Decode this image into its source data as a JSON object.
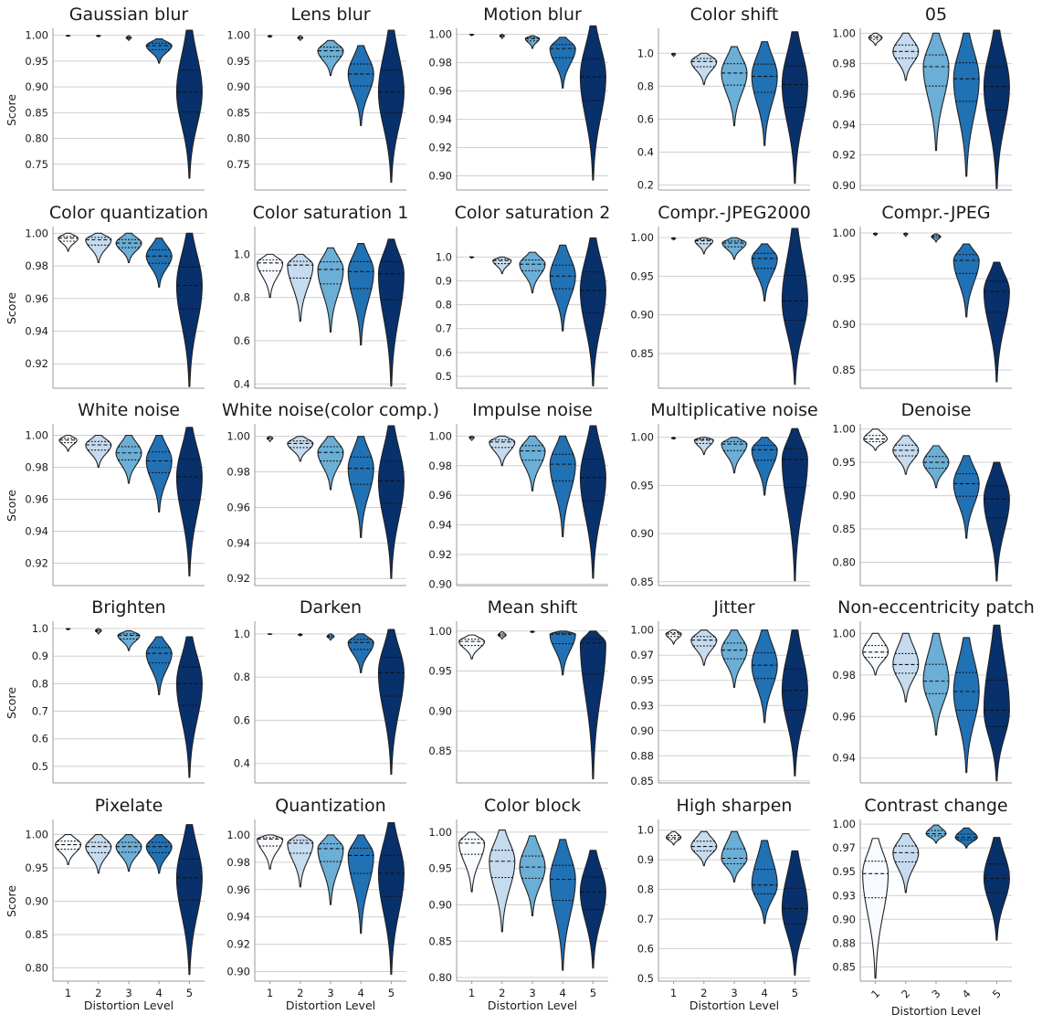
{
  "chart_data": {
    "type": "violin",
    "colors": [
      "#f7fbff",
      "#c6dbef",
      "#6baed6",
      "#2171b5",
      "#08306b"
    ],
    "xlabel": "Distortion Level",
    "ylabel": "Score",
    "categories": [
      "1",
      "2",
      "3",
      "4",
      "5"
    ],
    "panels": [
      {
        "title": "Gaussian blur",
        "ylim": [
          0.7,
          1.01
        ],
        "yticks": [
          0.75,
          0.8,
          0.85,
          0.9,
          0.95,
          1.0
        ],
        "medians": [
          0.999,
          0.999,
          0.995,
          0.98,
          0.89
        ],
        "mins": [
          0.998,
          0.997,
          0.99,
          0.946,
          0.723
        ],
        "maxs": [
          1.0,
          1.0,
          0.999,
          0.993,
          1.01
        ]
      },
      {
        "title": "Lens blur",
        "ylim": [
          0.7,
          1.01
        ],
        "yticks": [
          0.75,
          0.8,
          0.85,
          0.9,
          0.95,
          1.0
        ],
        "medians": [
          0.998,
          0.995,
          0.97,
          0.925,
          0.89
        ],
        "mins": [
          0.996,
          0.99,
          0.922,
          0.825,
          0.715
        ],
        "maxs": [
          1.0,
          0.999,
          0.99,
          0.98,
          1.01
        ]
      },
      {
        "title": "Motion blur",
        "ylim": [
          0.89,
          1.003
        ],
        "yticks": [
          0.9,
          0.92,
          0.94,
          0.96,
          0.98,
          1.0
        ],
        "medians": [
          1.0,
          0.999,
          0.997,
          0.99,
          0.97
        ],
        "mins": [
          0.999,
          0.997,
          0.99,
          0.962,
          0.897
        ],
        "maxs": [
          1.0,
          1.0,
          0.999,
          0.998,
          1.006
        ]
      },
      {
        "title": "Color shift",
        "ylim": [
          0.17,
          1.14
        ],
        "yticks": [
          0.2,
          0.4,
          0.6,
          0.8,
          1.0
        ],
        "medians": [
          0.995,
          0.95,
          0.88,
          0.86,
          0.81
        ],
        "mins": [
          0.98,
          0.81,
          0.56,
          0.44,
          0.21
        ],
        "maxs": [
          1.0,
          1.0,
          1.04,
          1.07,
          1.13
        ]
      },
      {
        "title": "05",
        "ylim": [
          0.897,
          1.002
        ],
        "yticks": [
          0.9,
          0.92,
          0.94,
          0.96,
          0.98,
          1.0
        ],
        "medians": [
          0.997,
          0.988,
          0.978,
          0.97,
          0.965
        ],
        "mins": [
          0.992,
          0.969,
          0.923,
          0.906,
          0.898
        ],
        "maxs": [
          1.0,
          1.0,
          1.0,
          1.0,
          1.002
        ]
      },
      {
        "title": "Color quantization",
        "ylim": [
          0.905,
          1.003
        ],
        "yticks": [
          0.92,
          0.94,
          0.96,
          0.98,
          1.0
        ],
        "medians": [
          0.997,
          0.996,
          0.994,
          0.986,
          0.968
        ],
        "mins": [
          0.989,
          0.982,
          0.982,
          0.967,
          0.906
        ],
        "maxs": [
          1.0,
          1.0,
          1.0,
          0.997,
          1.0
        ]
      },
      {
        "title": "Color saturation 1",
        "ylim": [
          0.38,
          1.12
        ],
        "yticks": [
          0.4,
          0.6,
          0.8,
          1.0
        ],
        "medians": [
          0.96,
          0.95,
          0.93,
          0.92,
          0.91
        ],
        "mins": [
          0.8,
          0.69,
          0.64,
          0.58,
          0.39
        ],
        "maxs": [
          1.0,
          1.0,
          1.03,
          1.05,
          1.07
        ]
      },
      {
        "title": "Color saturation 2",
        "ylim": [
          0.45,
          1.12
        ],
        "yticks": [
          0.5,
          0.6,
          0.7,
          0.8,
          0.9,
          1.0
        ],
        "medians": [
          1.0,
          0.985,
          0.97,
          0.92,
          0.86
        ],
        "mins": [
          0.995,
          0.93,
          0.85,
          0.69,
          0.46
        ],
        "maxs": [
          1.0,
          1.0,
          1.02,
          1.05,
          1.08
        ]
      },
      {
        "title": "Compr.-JPEG2000",
        "ylim": [
          0.805,
          1.012
        ],
        "yticks": [
          0.85,
          0.9,
          0.95,
          1.0
        ],
        "medians": [
          0.999,
          0.996,
          0.993,
          0.973,
          0.918
        ],
        "mins": [
          0.997,
          0.979,
          0.972,
          0.918,
          0.81
        ],
        "maxs": [
          1.0,
          1.0,
          1.0,
          0.992,
          1.012
        ]
      },
      {
        "title": "Compr.-JPEG",
        "ylim": [
          0.83,
          1.005
        ],
        "yticks": [
          0.85,
          0.9,
          0.95,
          1.0
        ],
        "medians": [
          0.999,
          0.999,
          0.996,
          0.97,
          0.936
        ],
        "mins": [
          0.997,
          0.996,
          0.99,
          0.908,
          0.837
        ],
        "maxs": [
          1.0,
          1.0,
          0.999,
          0.988,
          0.968
        ]
      },
      {
        "title": "White noise",
        "ylim": [
          0.906,
          1.006
        ],
        "yticks": [
          0.92,
          0.94,
          0.96,
          0.98,
          1.0
        ],
        "medians": [
          0.997,
          0.994,
          0.989,
          0.984,
          0.974
        ],
        "mins": [
          0.99,
          0.98,
          0.97,
          0.952,
          0.912
        ],
        "maxs": [
          1.0,
          1.0,
          1.0,
          1.0,
          1.005
        ]
      },
      {
        "title": "White noise(color comp.)",
        "ylim": [
          0.916,
          1.006
        ],
        "yticks": [
          0.92,
          0.94,
          0.96,
          0.98,
          1.0
        ],
        "medians": [
          0.999,
          0.996,
          0.991,
          0.982,
          0.975
        ],
        "mins": [
          0.997,
          0.986,
          0.97,
          0.943,
          0.92
        ],
        "maxs": [
          1.0,
          1.0,
          1.0,
          1.0,
          1.006
        ]
      },
      {
        "title": "Impulse noise",
        "ylim": [
          0.899,
          1.007
        ],
        "yticks": [
          0.9,
          0.92,
          0.94,
          0.96,
          0.98,
          1.0
        ],
        "medians": [
          0.999,
          0.996,
          0.99,
          0.981,
          0.972
        ],
        "mins": [
          0.997,
          0.98,
          0.963,
          0.932,
          0.904
        ],
        "maxs": [
          1.0,
          1.0,
          1.0,
          1.0,
          1.007
        ]
      },
      {
        "title": "Multiplicative noise",
        "ylim": [
          0.846,
          1.012
        ],
        "yticks": [
          0.85,
          0.9,
          0.95,
          1.0
        ],
        "medians": [
          0.999,
          0.997,
          0.993,
          0.987,
          0.977
        ],
        "mins": [
          0.998,
          0.982,
          0.963,
          0.94,
          0.851
        ],
        "maxs": [
          1.0,
          1.0,
          1.0,
          1.0,
          1.009
        ]
      },
      {
        "title": "Denoise",
        "ylim": [
          0.765,
          1.005
        ],
        "yticks": [
          0.8,
          0.85,
          0.9,
          0.95,
          1.0
        ],
        "medians": [
          0.985,
          0.968,
          0.95,
          0.918,
          0.895
        ],
        "mins": [
          0.968,
          0.932,
          0.912,
          0.836,
          0.772
        ],
        "maxs": [
          1.0,
          0.99,
          0.975,
          0.96,
          0.95
        ]
      },
      {
        "title": "Brighten",
        "ylim": [
          0.44,
          1.02
        ],
        "yticks": [
          0.5,
          0.6,
          0.7,
          0.8,
          0.9,
          1.0
        ],
        "medians": [
          0.999,
          0.992,
          0.975,
          0.91,
          0.8
        ],
        "mins": [
          0.995,
          0.98,
          0.92,
          0.76,
          0.46
        ],
        "maxs": [
          1.0,
          1.0,
          0.992,
          0.97,
          0.97
        ]
      },
      {
        "title": "Darken",
        "ylim": [
          0.31,
          1.05
        ],
        "yticks": [
          0.4,
          0.6,
          0.8,
          1.0
        ],
        "medians": [
          0.999,
          0.996,
          0.988,
          0.96,
          0.82
        ],
        "mins": [
          0.997,
          0.99,
          0.97,
          0.82,
          0.35
        ],
        "maxs": [
          1.0,
          1.0,
          1.0,
          1.0,
          1.02
        ]
      },
      {
        "title": "Mean shift",
        "ylim": [
          0.81,
          1.01
        ],
        "yticks": [
          0.85,
          0.9,
          0.95,
          1.0
        ],
        "medians": [
          0.987,
          0.995,
          0.999,
          0.996,
          0.985
        ],
        "mins": [
          0.965,
          0.99,
          0.998,
          0.945,
          0.815
        ],
        "maxs": [
          0.995,
          0.999,
          1.0,
          1.0,
          1.0
        ]
      },
      {
        "title": "Jitter",
        "ylim": [
          0.848,
          1.007
        ],
        "yticks": [
          0.85,
          0.875,
          0.9,
          0.925,
          0.95,
          0.975,
          1.0
        ],
        "medians": [
          0.996,
          0.99,
          0.98,
          0.965,
          0.94
        ],
        "mins": [
          0.986,
          0.965,
          0.943,
          0.908,
          0.855
        ],
        "maxs": [
          1.0,
          1.0,
          1.0,
          1.0,
          1.0
        ]
      },
      {
        "title": "Non-eccentricity patch",
        "ylim": [
          0.928,
          1.005
        ],
        "yticks": [
          0.94,
          0.96,
          0.98,
          1.0
        ],
        "medians": [
          0.991,
          0.985,
          0.977,
          0.972,
          0.963
        ],
        "mins": [
          0.98,
          0.967,
          0.951,
          0.933,
          0.929
        ],
        "maxs": [
          1.0,
          1.0,
          1.0,
          0.998,
          1.004
        ]
      },
      {
        "title": "Pixelate",
        "ylim": [
          0.78,
          1.02
        ],
        "yticks": [
          0.8,
          0.85,
          0.9,
          0.95,
          1.0
        ],
        "medians": [
          0.985,
          0.982,
          0.982,
          0.982,
          0.935
        ],
        "mins": [
          0.955,
          0.942,
          0.945,
          0.942,
          0.79
        ],
        "maxs": [
          1.0,
          1.0,
          1.0,
          1.0,
          1.015
        ]
      },
      {
        "title": "Quantization",
        "ylim": [
          0.893,
          1.01
        ],
        "yticks": [
          0.9,
          0.92,
          0.94,
          0.96,
          0.98,
          1.0
        ],
        "medians": [
          0.997,
          0.994,
          0.99,
          0.985,
          0.972
        ],
        "mins": [
          0.975,
          0.962,
          0.949,
          0.928,
          0.898
        ],
        "maxs": [
          1.0,
          1.0,
          1.0,
          1.0,
          1.009
        ]
      },
      {
        "title": "Color block",
        "ylim": [
          0.795,
          1.015
        ],
        "yticks": [
          0.8,
          0.85,
          0.9,
          0.95,
          1.0
        ],
        "medians": [
          0.985,
          0.96,
          0.952,
          0.935,
          0.918
        ],
        "mins": [
          0.918,
          0.863,
          0.885,
          0.81,
          0.813
        ],
        "maxs": [
          1.0,
          1.003,
          0.995,
          0.99,
          0.975
        ]
      },
      {
        "title": "High sharpen",
        "ylim": [
          0.49,
          1.03
        ],
        "yticks": [
          0.5,
          0.6,
          0.7,
          0.8,
          0.9,
          1.0
        ],
        "medians": [
          0.975,
          0.945,
          0.905,
          0.815,
          0.735
        ],
        "mins": [
          0.95,
          0.88,
          0.825,
          0.685,
          0.51
        ],
        "maxs": [
          0.995,
          0.995,
          0.995,
          0.965,
          0.93
        ]
      },
      {
        "title": "Contrast change",
        "ylim": [
          0.835,
          1.003
        ],
        "yticks": [
          0.85,
          0.875,
          0.9,
          0.925,
          0.95,
          0.975,
          1.0
        ],
        "medians": [
          0.948,
          0.97,
          0.99,
          0.986,
          0.943
        ],
        "mins": [
          0.838,
          0.928,
          0.98,
          0.975,
          0.878
        ],
        "maxs": [
          0.985,
          0.99,
          0.999,
          0.996,
          0.986
        ]
      }
    ]
  }
}
